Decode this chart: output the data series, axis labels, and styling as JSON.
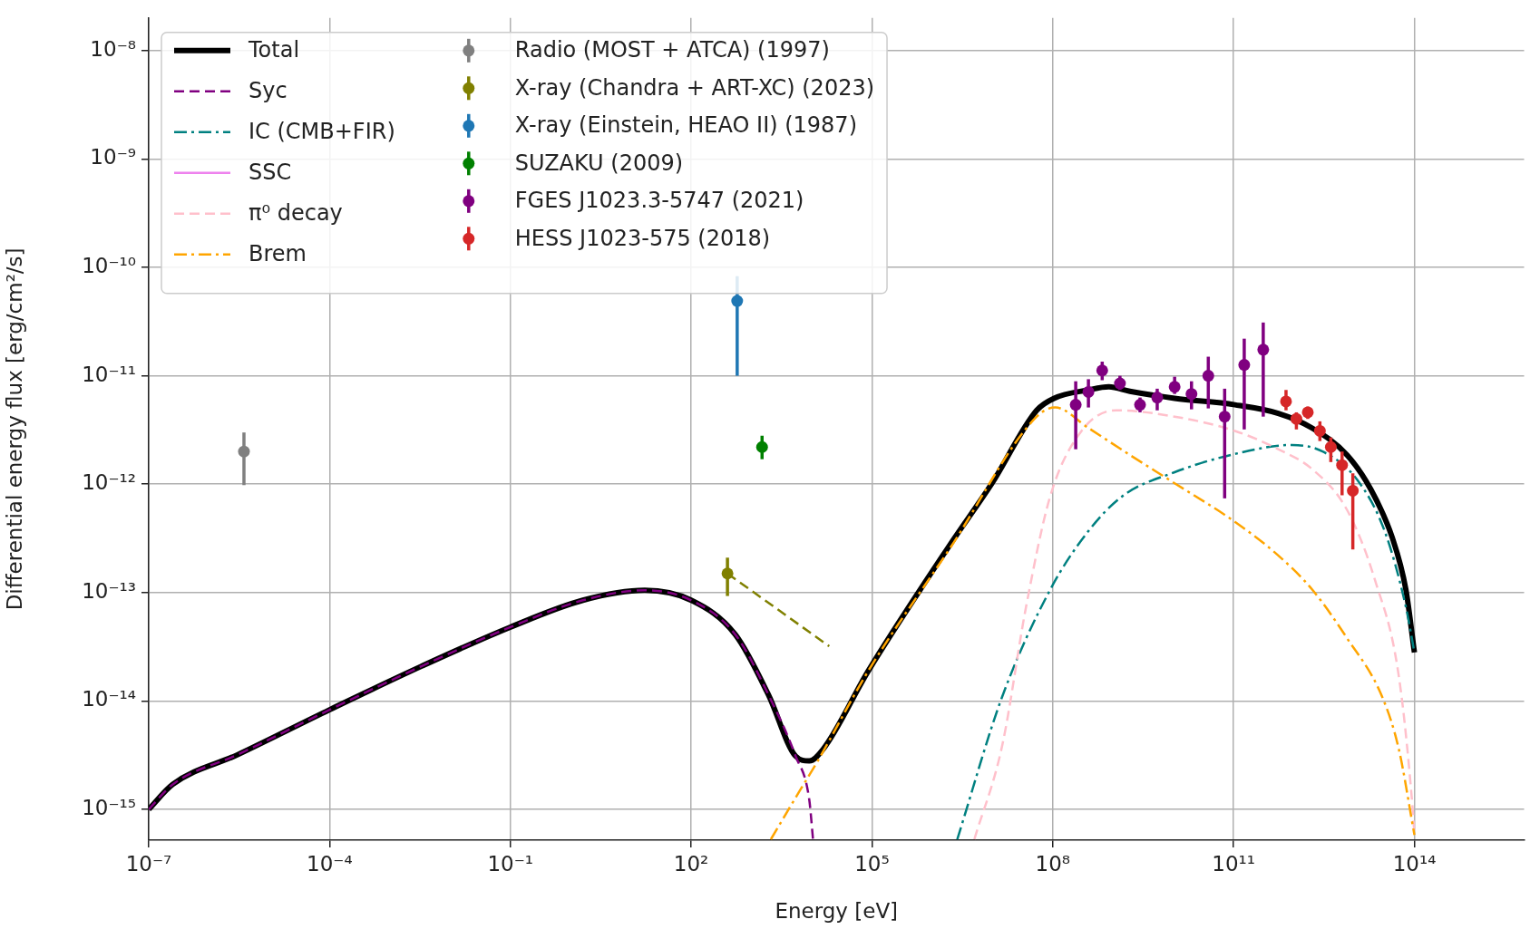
{
  "chart_data": {
    "type": "line",
    "xlabel": "Energy [eV]",
    "ylabel": "Differential energy flux [erg/cm²/s]",
    "log": "xy",
    "grid": true,
    "legend": "top left",
    "xlim": [
      1e-07,
      6600000000000000.0
    ],
    "ylim": [
      5.2e-16,
      2e-08
    ],
    "xticks": [
      {
        "value": 1e-07,
        "label": "10⁻⁷"
      },
      {
        "value": 0.0001,
        "label": "10⁻⁴"
      },
      {
        "value": 0.1,
        "label": "10⁻¹"
      },
      {
        "value": 100,
        "label": "10²"
      },
      {
        "value": 100000.0,
        "label": "10⁵"
      },
      {
        "value": 100000000.0,
        "label": "10⁸"
      },
      {
        "value": 100000000000.0,
        "label": "10¹¹"
      },
      {
        "value": 100000000000000.0,
        "label": "10¹⁴"
      }
    ],
    "yticks": [
      {
        "value": 1e-15,
        "label": "10⁻¹⁵"
      },
      {
        "value": 1e-14,
        "label": "10⁻¹⁴"
      },
      {
        "value": 1e-13,
        "label": "10⁻¹³"
      },
      {
        "value": 1e-12,
        "label": "10⁻¹²"
      },
      {
        "value": 1e-11,
        "label": "10⁻¹¹"
      },
      {
        "value": 1e-10,
        "label": "10⁻¹⁰"
      },
      {
        "value": 1e-09,
        "label": "10⁻⁹"
      },
      {
        "value": 1e-08,
        "label": "10⁻⁸"
      }
    ],
    "series": [
      {
        "name": "Total",
        "type": "line",
        "color": "#000000",
        "line_style": "solid",
        "marker": "none",
        "x": [
          1e-07,
          2.5e-07,
          3e-06,
          0.0001,
          0.0034,
          0.1,
          1.6,
          17,
          100,
          540,
          1900.0,
          5400.0,
          9100.0,
          15500.0,
          87000.0,
          2000000.0,
          9800000.0,
          54000000.0,
          105000000.0,
          390000000.0,
          850000000.0,
          1900000000.0,
          10500000000.0,
          105000000000.0,
          550000000000.0,
          2000000000000.0,
          7600000000000.0,
          19000000000000.0,
          43000000000000.0,
          72000000000000.0,
          100000000000000.0
        ],
        "values": [
          1e-15,
          1.7e-15,
          3.2e-15,
          8.3e-15,
          2.1e-14,
          4.8e-14,
          8.5e-14,
          1.05e-13,
          8.5e-14,
          4.1e-14,
          1.15e-14,
          3.1e-15,
          2.8e-15,
          3.6e-15,
          1.9e-14,
          2.8e-13,
          1.02e-12,
          4.8e-12,
          6.2e-12,
          7.4e-12,
          7.9e-12,
          7.2e-12,
          6.2e-12,
          5.4e-12,
          4.5e-12,
          3.3e-12,
          1.86e-12,
          8.9e-13,
          3.2e-13,
          1.07e-13,
          2.8e-14
        ]
      },
      {
        "name": "Syc",
        "type": "line",
        "color": "#800080",
        "line_style": "dashed",
        "marker": "none",
        "x": [
          1e-07,
          2.5e-07,
          3e-06,
          0.0001,
          0.0034,
          0.1,
          1.6,
          17,
          100,
          540,
          1900.0,
          5400.0,
          9100.0,
          10500.0
        ],
        "values": [
          1e-15,
          1.7e-15,
          3.2e-15,
          8.3e-15,
          2.1e-14,
          4.8e-14,
          8.5e-14,
          1.05e-13,
          8.5e-14,
          4.1e-14,
          1.15e-14,
          3.1e-15,
          1.23e-15,
          5.3e-16
        ]
      },
      {
        "name": "IC (CMB+FIR)",
        "type": "line",
        "color": "#008080",
        "line_style": "dashdot",
        "marker": "none",
        "x": [
          2600000.0,
          14500000.0,
          91000000.0,
          390000000.0,
          1450000000.0,
          10500000000.0,
          105000000000.0,
          930000000000.0,
          3000000000000.0,
          11200000000000.0,
          32000000000000.0,
          72000000000000.0,
          100000000000000.0
        ],
        "values": [
          5.3e-16,
          1.1e-14,
          1.07e-13,
          3.7e-13,
          7.8e-13,
          1.29e-12,
          1.9e-12,
          2.3e-12,
          2e-12,
          1.1e-12,
          3.7e-13,
          7.4e-14,
          2.8e-14
        ]
      },
      {
        "name": "SSC",
        "type": "line",
        "color": "#ee82ee",
        "line_style": "solid",
        "marker": "none"
      },
      {
        "name": "π⁰ decay",
        "type": "line",
        "color": "#ffc0cb",
        "line_style": "dashed",
        "marker": "none",
        "x": [
          5000000.0,
          14500000.0,
          36000000.0,
          91000000.0,
          300000000.0,
          1120000000.0,
          10500000000.0,
          105000000000.0,
          550000000000.0,
          2000000000000.0,
          7600000000000.0,
          22000000000000.0,
          55000000000000.0,
          93000000000000.0,
          100000000000000.0
        ],
        "values": [
          5.3e-16,
          3.9e-15,
          7.4e-14,
          7.8e-13,
          3.1e-12,
          4.8e-12,
          4.2e-12,
          3.1e-12,
          2.1e-12,
          1.38e-12,
          5.8e-13,
          1.32e-13,
          1.7e-14,
          1.05e-15,
          5.8e-16
        ]
      },
      {
        "name": "Brem",
        "type": "line",
        "color": "#ffa500",
        "line_style": "dashdot",
        "marker": "none",
        "x": [
          2100.0,
          6300.0,
          12600.0,
          87000.0,
          2000000.0,
          54000000.0,
          110000000.0,
          390000000.0,
          1900000000.0,
          10500000000.0,
          105000000000.0,
          550000000000.0,
          2000000000000.0,
          7600000000000.0,
          29000000000000.0,
          55000000000000.0,
          100000000000000.0
        ],
        "values": [
          5.3e-16,
          1.48e-15,
          2.8e-15,
          1.9e-14,
          2.6e-13,
          4.2e-12,
          5.1e-12,
          3.3e-12,
          1.86e-12,
          1.02e-12,
          4.5e-13,
          2.2e-13,
          1.07e-13,
          3.8e-14,
          1.1e-14,
          3.6e-15,
          5.8e-16
        ]
      },
      {
        "type": "line",
        "color": "#808000",
        "line_style": "dashed",
        "marker": "none",
        "x": [
          400.0,
          19500.0
        ],
        "values": [
          1.5e-13,
          3.2e-14
        ]
      },
      {
        "name": "Radio (MOST + ATCA) (1997)",
        "type": "scatter",
        "color": "#808080",
        "marker": "circle",
        "x": [
          3.8e-06
        ],
        "values": [
          2e-12
        ],
        "errors": [
          [
            9.8e-13,
            3e-12
          ]
        ]
      },
      {
        "name": "X-ray (Chandra + ART-XC) (2023)",
        "type": "scatter",
        "color": "#808000",
        "marker": "circle",
        "x": [
          400.0
        ],
        "values": [
          1.5e-13
        ],
        "errors": [
          [
            9.3e-14,
            2.1e-13
          ]
        ]
      },
      {
        "name": "X-ray (Einstein, HEAO II) (1987)",
        "type": "scatter",
        "color": "#1f77b4",
        "marker": "circle",
        "x": [
          580.0
        ],
        "values": [
          4.9e-11
        ],
        "errors": [
          [
            1e-11,
            8.3e-11
          ]
        ]
      },
      {
        "name": "SUZAKU (2009)",
        "type": "scatter",
        "color": "#008000",
        "marker": "circle",
        "x": [
          1500.0
        ],
        "values": [
          2.2e-12
        ],
        "errors": [
          [
            1.7e-12,
            2.8e-12
          ]
        ]
      },
      {
        "name": "FGES J1023.3-5747 (2021)",
        "type": "scatter",
        "color": "#800080",
        "marker": "circle",
        "x": [
          240000000.0,
          390000000.0,
          660000000.0,
          1300000000.0,
          2800000000.0,
          5400000000.0,
          10500000000.0,
          20000000000.0,
          38000000000.0,
          71000000000.0,
          150000000000.0,
          310000000000.0
        ],
        "values": [
          5.4e-12,
          7.1e-12,
          1.12e-11,
          8.5e-12,
          5.4e-12,
          6.3e-12,
          7.9e-12,
          6.8e-12,
          1e-11,
          4.2e-12,
          1.26e-11,
          1.74e-11
        ],
        "errors": [
          [
            2.1e-12,
            8.9e-12
          ],
          [
            5.1e-12,
            9.3e-12
          ],
          [
            9.1e-12,
            1.35e-11
          ],
          [
            7.4e-12,
            1e-11
          ],
          [
            4.6e-12,
            6.3e-12
          ],
          [
            4.8e-12,
            7.6e-12
          ],
          [
            6.8e-12,
            9.8e-12
          ],
          [
            4.9e-12,
            8.9e-12
          ],
          [
            5e-12,
            1.5e-11
          ],
          [
            7.4e-13,
            7.6e-12
          ],
          [
            3.2e-12,
            2.2e-11
          ],
          [
            4.2e-12,
            3.1e-11
          ]
        ]
      },
      {
        "name": "HESS J1023-575 (2018)",
        "type": "scatter",
        "color": "#d62728",
        "marker": "circle",
        "x": [
          740000000000.0,
          1100000000000.0,
          1700000000000.0,
          2700000000000.0,
          4100000000000.0,
          6300000000000.0,
          9500000000000.0
        ],
        "values": [
          5.8e-12,
          4e-12,
          4.6e-12,
          3.1e-12,
          2.2e-12,
          1.5e-12,
          8.7e-13
        ],
        "errors": [
          [
            4.8e-12,
            7.4e-12
          ],
          [
            3.2e-12,
            4.6e-12
          ],
          [
            4e-12,
            5.2e-12
          ],
          [
            2.5e-12,
            3.8e-12
          ],
          [
            1.6e-12,
            2.7e-12
          ],
          [
            7.9e-13,
            2e-12
          ],
          [
            2.5e-13,
            1.26e-12
          ]
        ]
      }
    ]
  }
}
